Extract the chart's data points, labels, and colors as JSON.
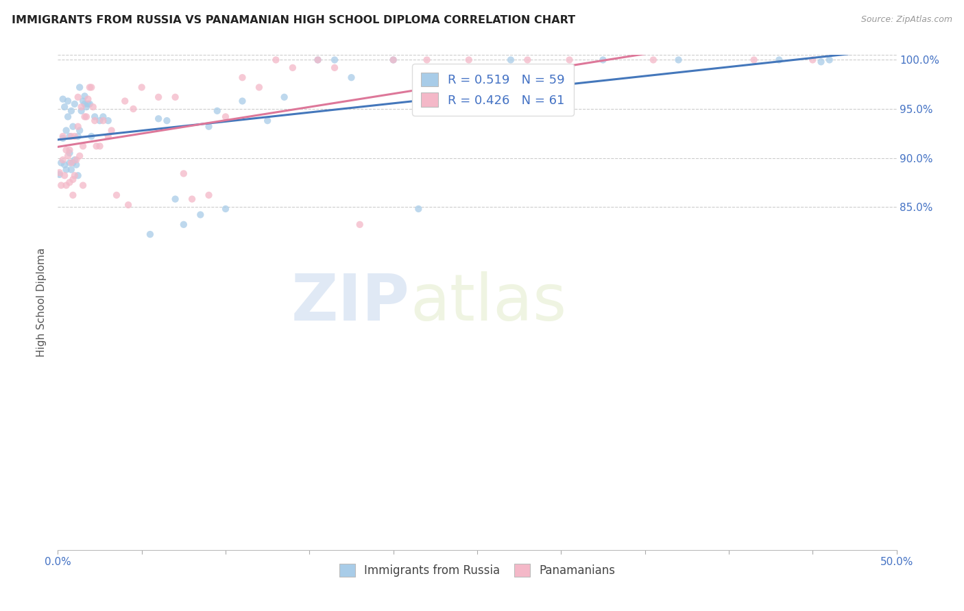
{
  "title": "IMMIGRANTS FROM RUSSIA VS PANAMANIAN HIGH SCHOOL DIPLOMA CORRELATION CHART",
  "source": "Source: ZipAtlas.com",
  "ylabel": "High School Diploma",
  "xmin": 0.0,
  "xmax": 0.5,
  "ymin": 0.5,
  "ymax": 1.005,
  "yticks": [
    0.85,
    0.9,
    0.95,
    1.0
  ],
  "ytick_labels": [
    "85.0%",
    "90.0%",
    "95.0%",
    "100.0%"
  ],
  "xticks": [
    0.0,
    0.05,
    0.1,
    0.15,
    0.2,
    0.25,
    0.3,
    0.35,
    0.4,
    0.45,
    0.5
  ],
  "xtick_labels": [
    "0.0%",
    "",
    "",
    "",
    "",
    "",
    "",
    "",
    "",
    "",
    "50.0%"
  ],
  "legend_R_blue": "0.519",
  "legend_N_blue": "59",
  "legend_R_pink": "0.426",
  "legend_N_pink": "61",
  "blue_color": "#a8cce8",
  "pink_color": "#f4b8c8",
  "blue_line_color": "#4477bb",
  "pink_line_color": "#dd7799",
  "scatter_alpha": 0.75,
  "scatter_size": 55,
  "watermark_zip": "ZIP",
  "watermark_atlas": "atlas",
  "blue_scatter_x": [
    0.001,
    0.002,
    0.003,
    0.003,
    0.004,
    0.004,
    0.005,
    0.005,
    0.006,
    0.006,
    0.007,
    0.007,
    0.007,
    0.008,
    0.008,
    0.009,
    0.009,
    0.01,
    0.01,
    0.011,
    0.012,
    0.012,
    0.013,
    0.013,
    0.014,
    0.015,
    0.016,
    0.016,
    0.017,
    0.018,
    0.019,
    0.02,
    0.022,
    0.025,
    0.027,
    0.03,
    0.055,
    0.06,
    0.065,
    0.07,
    0.075,
    0.085,
    0.09,
    0.095,
    0.1,
    0.11,
    0.125,
    0.135,
    0.155,
    0.165,
    0.175,
    0.2,
    0.215,
    0.27,
    0.325,
    0.37,
    0.43,
    0.455,
    0.46
  ],
  "blue_scatter_y": [
    0.883,
    0.895,
    0.92,
    0.96,
    0.893,
    0.952,
    0.888,
    0.928,
    0.942,
    0.958,
    0.895,
    0.905,
    0.922,
    0.888,
    0.948,
    0.895,
    0.932,
    0.898,
    0.955,
    0.893,
    0.882,
    0.922,
    0.928,
    0.972,
    0.948,
    0.958,
    0.955,
    0.963,
    0.952,
    0.955,
    0.955,
    0.922,
    0.942,
    0.938,
    0.942,
    0.938,
    0.822,
    0.94,
    0.938,
    0.858,
    0.832,
    0.842,
    0.932,
    0.948,
    0.848,
    0.958,
    0.938,
    0.962,
    1.0,
    1.0,
    0.982,
    1.0,
    0.848,
    1.0,
    1.0,
    1.0,
    1.0,
    0.998,
    1.0
  ],
  "pink_scatter_x": [
    0.001,
    0.002,
    0.003,
    0.003,
    0.004,
    0.005,
    0.005,
    0.006,
    0.007,
    0.007,
    0.008,
    0.008,
    0.009,
    0.009,
    0.01,
    0.01,
    0.011,
    0.012,
    0.012,
    0.013,
    0.014,
    0.015,
    0.015,
    0.016,
    0.017,
    0.018,
    0.019,
    0.02,
    0.021,
    0.022,
    0.023,
    0.025,
    0.027,
    0.03,
    0.032,
    0.035,
    0.04,
    0.042,
    0.045,
    0.05,
    0.06,
    0.07,
    0.075,
    0.08,
    0.09,
    0.1,
    0.11,
    0.12,
    0.13,
    0.14,
    0.155,
    0.165,
    0.18,
    0.2,
    0.22,
    0.245,
    0.28,
    0.305,
    0.355,
    0.415,
    0.45
  ],
  "pink_scatter_y": [
    0.885,
    0.872,
    0.898,
    0.922,
    0.882,
    0.872,
    0.908,
    0.902,
    0.875,
    0.908,
    0.895,
    0.922,
    0.862,
    0.878,
    0.882,
    0.922,
    0.898,
    0.932,
    0.962,
    0.902,
    0.952,
    0.872,
    0.912,
    0.942,
    0.942,
    0.96,
    0.972,
    0.972,
    0.952,
    0.938,
    0.912,
    0.912,
    0.938,
    0.922,
    0.928,
    0.862,
    0.958,
    0.852,
    0.95,
    0.972,
    0.962,
    0.962,
    0.884,
    0.858,
    0.862,
    0.942,
    0.982,
    0.972,
    1.0,
    0.992,
    1.0,
    0.992,
    0.832,
    1.0,
    1.0,
    1.0,
    1.0,
    1.0,
    1.0,
    1.0,
    1.0
  ]
}
